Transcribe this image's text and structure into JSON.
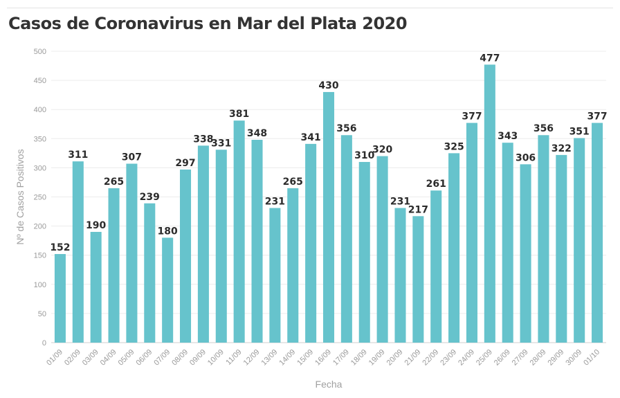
{
  "chart_data": {
    "type": "bar",
    "title": "Casos de Coronavirus en Mar del Plata 2020",
    "xlabel": "Fecha",
    "ylabel": "Nº de Casos Positivos",
    "ylim": [
      0,
      500
    ],
    "yticks": [
      0,
      50,
      100,
      150,
      200,
      250,
      300,
      350,
      400,
      450,
      500
    ],
    "grid": true,
    "color": "#66c3cc",
    "categories": [
      "01/09",
      "02/09",
      "03/09",
      "04/09",
      "05/09",
      "06/09",
      "07/09",
      "08/09",
      "09/09",
      "10/09",
      "11/09",
      "12/09",
      "13/09",
      "14/09",
      "15/09",
      "16/09",
      "17/09",
      "18/09",
      "19/09",
      "20/09",
      "21/09",
      "22/09",
      "23/09",
      "24/09",
      "25/09",
      "26/09",
      "27/09",
      "28/09",
      "29/09",
      "30/09",
      "01/10"
    ],
    "values": [
      152,
      311,
      190,
      265,
      307,
      239,
      180,
      297,
      338,
      331,
      381,
      348,
      231,
      265,
      341,
      430,
      356,
      310,
      320,
      231,
      217,
      261,
      325,
      377,
      477,
      343,
      306,
      356,
      322,
      351,
      377
    ]
  }
}
